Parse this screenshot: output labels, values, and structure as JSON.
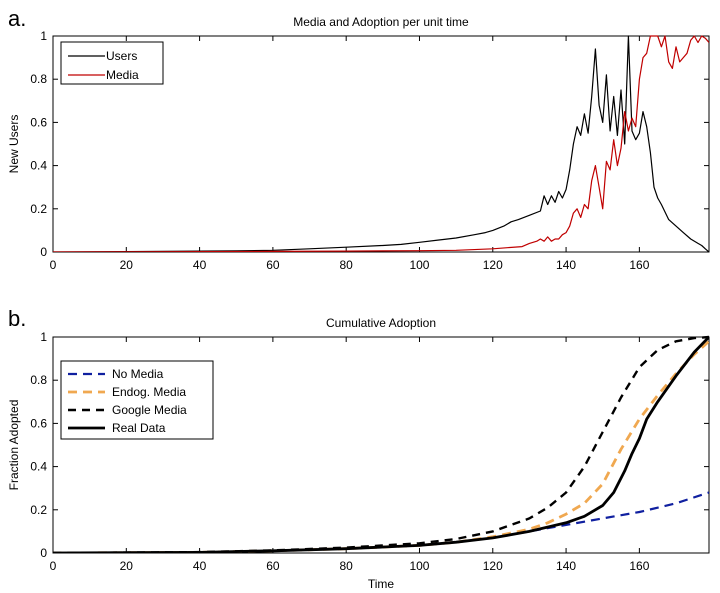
{
  "chart_data": [
    {
      "type": "line",
      "panel_label": "a.",
      "title": "Media and Adoption per unit time",
      "xlabel": "",
      "ylabel": "New Users",
      "xlim": [
        0,
        179
      ],
      "ylim": [
        0,
        1
      ],
      "xticks": [
        0,
        20,
        40,
        60,
        80,
        100,
        120,
        140,
        160
      ],
      "yticks": [
        0,
        0.2,
        0.4,
        0.6,
        0.8,
        1
      ],
      "legend": "top-left",
      "series": [
        {
          "name": "Users",
          "color": "#000000",
          "x": [
            0,
            50,
            60,
            70,
            80,
            90,
            95,
            100,
            105,
            110,
            115,
            118,
            120,
            123,
            125,
            127,
            130,
            133,
            134,
            135,
            136,
            137,
            138,
            139,
            140,
            141,
            142,
            143,
            144,
            145,
            146,
            147,
            148,
            149,
            150,
            151,
            152,
            153,
            154,
            155,
            156,
            157,
            158,
            159,
            160,
            161,
            162,
            163,
            164,
            165,
            166,
            168,
            170,
            172,
            174,
            176,
            177,
            178,
            179
          ],
          "y": [
            0,
            0.005,
            0.008,
            0.015,
            0.022,
            0.03,
            0.035,
            0.045,
            0.055,
            0.065,
            0.08,
            0.09,
            0.1,
            0.12,
            0.14,
            0.15,
            0.17,
            0.19,
            0.26,
            0.22,
            0.26,
            0.23,
            0.28,
            0.25,
            0.29,
            0.38,
            0.5,
            0.58,
            0.54,
            0.64,
            0.55,
            0.72,
            0.94,
            0.68,
            0.6,
            0.82,
            0.56,
            0.72,
            0.54,
            0.75,
            0.5,
            1.0,
            0.56,
            0.52,
            0.55,
            0.65,
            0.58,
            0.46,
            0.3,
            0.25,
            0.22,
            0.15,
            0.12,
            0.09,
            0.06,
            0.04,
            0.03,
            0.015,
            0
          ],
          "width": 1.2
        },
        {
          "name": "Media",
          "color": "#c00000",
          "x": [
            0,
            60,
            80,
            100,
            110,
            120,
            124,
            128,
            130,
            132,
            133,
            134,
            135,
            136,
            137,
            138,
            139,
            140,
            141,
            142,
            143,
            144,
            145,
            146,
            147,
            148,
            149,
            150,
            151,
            152,
            153,
            154,
            155,
            156,
            157,
            158,
            159,
            160,
            161,
            162,
            163,
            164,
            165,
            166,
            167,
            168,
            169,
            170,
            171,
            172,
            173,
            174,
            175,
            176,
            177,
            178,
            179
          ],
          "y": [
            0,
            0.003,
            0.004,
            0.006,
            0.008,
            0.015,
            0.02,
            0.025,
            0.04,
            0.05,
            0.06,
            0.05,
            0.07,
            0.05,
            0.06,
            0.06,
            0.08,
            0.09,
            0.12,
            0.18,
            0.2,
            0.16,
            0.22,
            0.2,
            0.33,
            0.4,
            0.3,
            0.2,
            0.42,
            0.38,
            0.52,
            0.4,
            0.48,
            0.65,
            0.56,
            0.62,
            0.58,
            0.8,
            0.9,
            0.92,
            1.0,
            1.0,
            1.0,
            0.95,
            1.0,
            0.88,
            0.85,
            0.95,
            0.88,
            0.9,
            0.92,
            0.98,
            1.0,
            0.97,
            1.0,
            0.99,
            0.97
          ],
          "width": 1.2
        }
      ]
    },
    {
      "type": "line",
      "panel_label": "b.",
      "title": "Cumulative Adoption",
      "xlabel": "Time",
      "ylabel": "Fraction Adopted",
      "xlim": [
        0,
        179
      ],
      "ylim": [
        0,
        1
      ],
      "xticks": [
        0,
        20,
        40,
        60,
        80,
        100,
        120,
        140,
        160
      ],
      "yticks": [
        0,
        0.2,
        0.4,
        0.6,
        0.8,
        1
      ],
      "legend": "top-left",
      "series": [
        {
          "name": "No Media",
          "color": "#1020a0",
          "dash": "9,6",
          "width": 2.2,
          "x": [
            0,
            40,
            60,
            80,
            100,
            110,
            120,
            130,
            140,
            150,
            160,
            170,
            179
          ],
          "y": [
            0,
            0.003,
            0.01,
            0.02,
            0.035,
            0.05,
            0.07,
            0.1,
            0.13,
            0.16,
            0.19,
            0.23,
            0.28
          ]
        },
        {
          "name": "Endog. Media",
          "color": "#f0a850",
          "dash": "9,6",
          "width": 2.8,
          "x": [
            0,
            40,
            60,
            80,
            100,
            110,
            120,
            130,
            135,
            140,
            145,
            150,
            155,
            160,
            165,
            170,
            175,
            179
          ],
          "y": [
            0,
            0.003,
            0.01,
            0.02,
            0.035,
            0.05,
            0.075,
            0.11,
            0.14,
            0.18,
            0.23,
            0.32,
            0.48,
            0.62,
            0.73,
            0.83,
            0.92,
            0.98
          ]
        },
        {
          "name": "Google Media",
          "color": "#000000",
          "dash": "8,6",
          "width": 2.4,
          "x": [
            0,
            40,
            60,
            80,
            100,
            110,
            120,
            130,
            135,
            140,
            145,
            150,
            155,
            160,
            165,
            170,
            175,
            179
          ],
          "y": [
            0,
            0.004,
            0.012,
            0.025,
            0.045,
            0.065,
            0.1,
            0.16,
            0.21,
            0.28,
            0.4,
            0.56,
            0.72,
            0.86,
            0.94,
            0.98,
            0.995,
            1.0
          ]
        },
        {
          "name": "Real Data",
          "color": "#000000",
          "dash": "",
          "width": 2.8,
          "x": [
            0,
            40,
            60,
            80,
            100,
            110,
            120,
            130,
            140,
            145,
            150,
            153,
            156,
            158,
            160,
            162,
            165,
            170,
            175,
            179
          ],
          "y": [
            0,
            0.003,
            0.01,
            0.02,
            0.035,
            0.05,
            0.07,
            0.1,
            0.14,
            0.17,
            0.22,
            0.28,
            0.38,
            0.46,
            0.53,
            0.62,
            0.7,
            0.82,
            0.93,
            1.0
          ]
        }
      ]
    }
  ]
}
